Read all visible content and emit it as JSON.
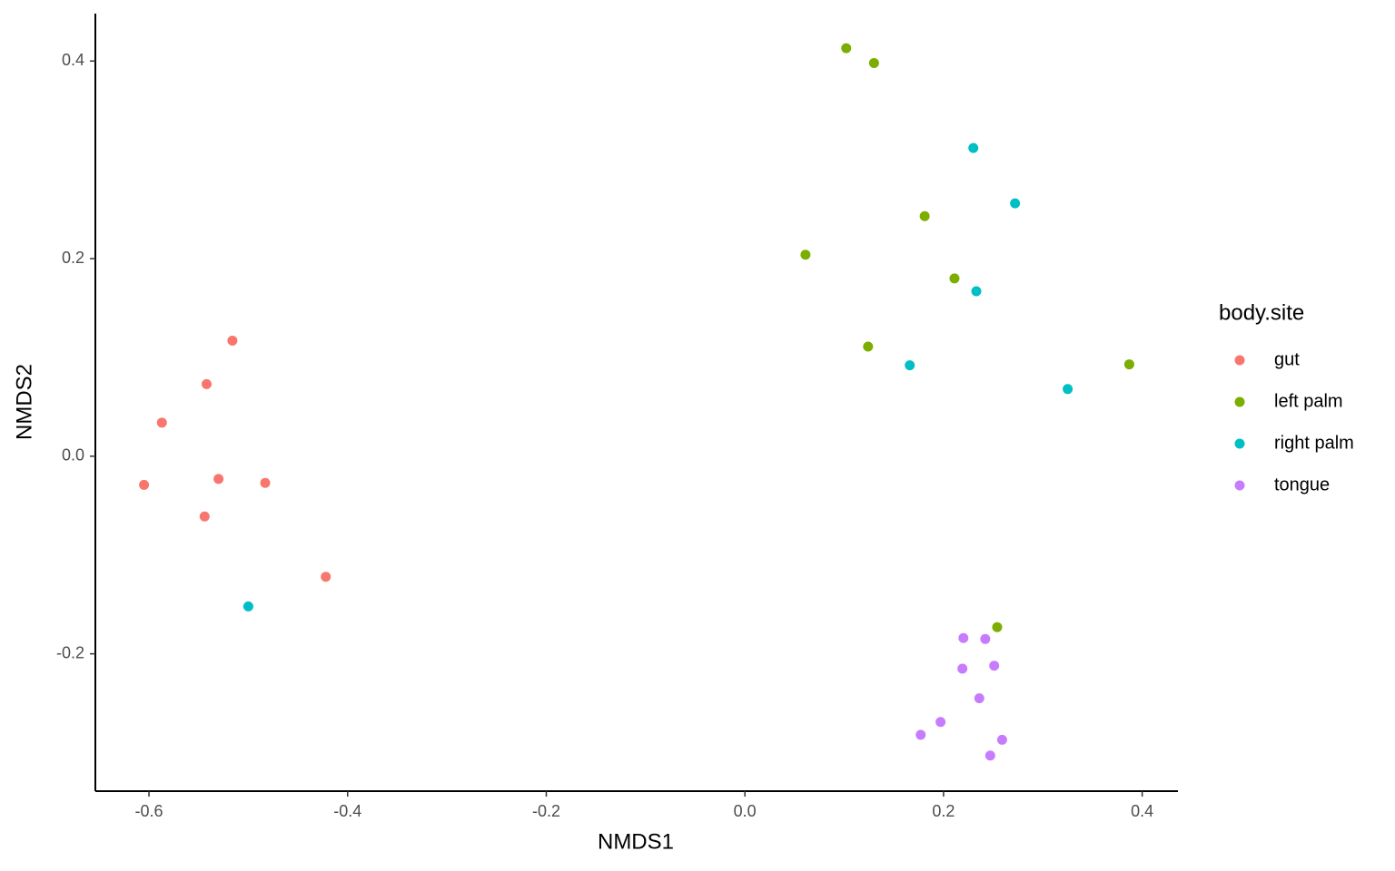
{
  "chart_data": {
    "type": "scatter",
    "xlabel": "NMDS1",
    "ylabel": "NMDS2",
    "legend_title": "body.site",
    "legend": "right",
    "xlim": [
      -0.654,
      0.436
    ],
    "ylim": [
      -0.339,
      0.448
    ],
    "xticks": [
      -0.6,
      -0.4,
      -0.2,
      {
        "value": 0,
        "label": "0.0"
      },
      0.2,
      0.4
    ],
    "yticks": [
      {
        "value": -0.2,
        "label": "-0.2"
      },
      {
        "value": 0,
        "label": "0.0"
      },
      0.2,
      0.4
    ],
    "grid": false,
    "series": [
      {
        "name": "gut",
        "color": "#f8766d",
        "x": [
          -0.605,
          -0.587,
          -0.542,
          -0.516,
          -0.53,
          -0.483,
          -0.544,
          -0.422
        ],
        "y": [
          -0.029,
          0.034,
          0.073,
          0.117,
          -0.023,
          -0.027,
          -0.061,
          -0.122
        ]
      },
      {
        "name": "left palm",
        "color": "#7cae00",
        "x": [
          0.102,
          0.13,
          0.181,
          0.061,
          0.211,
          0.124,
          0.387,
          0.254
        ],
        "y": [
          0.413,
          0.398,
          0.243,
          0.204,
          0.18,
          0.111,
          0.093,
          -0.173
        ]
      },
      {
        "name": "right palm",
        "color": "#00bfc4",
        "x": [
          0.23,
          0.272,
          0.233,
          0.166,
          0.325,
          -0.5
        ],
        "y": [
          0.312,
          0.256,
          0.167,
          0.092,
          0.068,
          -0.152
        ]
      },
      {
        "name": "tongue",
        "color": "#c77cff",
        "x": [
          0.22,
          0.242,
          0.219,
          0.251,
          0.236,
          0.197,
          0.177,
          0.259,
          0.247
        ],
        "y": [
          -0.184,
          -0.185,
          -0.215,
          -0.212,
          -0.245,
          -0.269,
          -0.282,
          -0.287,
          -0.303
        ]
      }
    ]
  }
}
